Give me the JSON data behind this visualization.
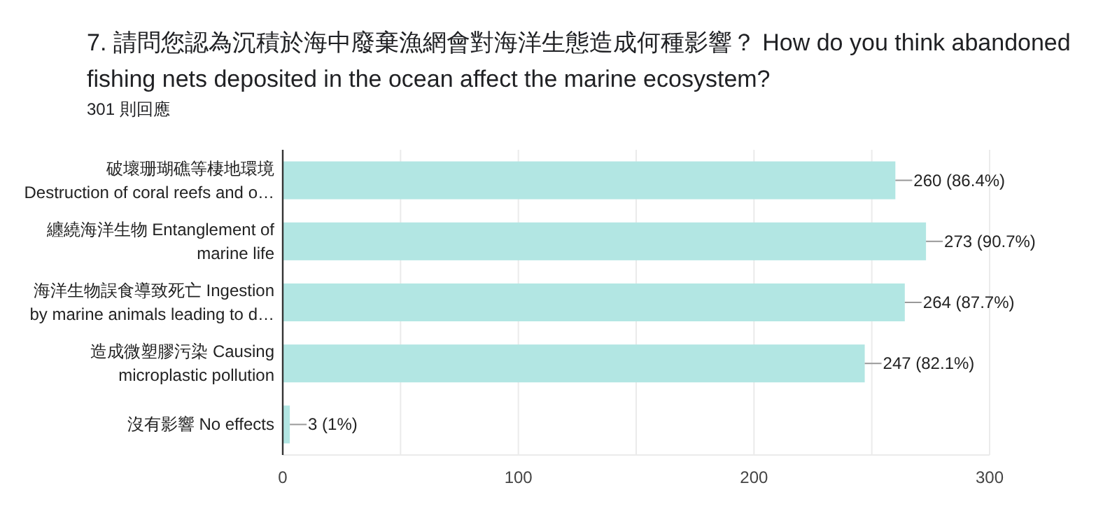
{
  "chart_data": {
    "type": "bar",
    "orientation": "horizontal",
    "title": "7. 請問您認為沉積於海中廢棄漁網會對海洋生態造成何種影響？ How do you think abandoned fishing nets deposited in the ocean affect the marine ecosystem?",
    "subtitle": "301 則回應",
    "categories": [
      "破壞珊瑚礁等棲地環境\nDestruction of coral reefs and o…",
      "纏繞海洋生物 Entanglement of\nmarine life",
      "海洋生物誤食導致死亡 Ingestion\nby marine animals leading to d…",
      "造成微塑膠污染 Causing\nmicroplastic pollution",
      "沒有影響 No effects"
    ],
    "values": [
      260,
      273,
      264,
      247,
      3
    ],
    "value_labels": [
      "260 (86.4%)",
      "273 (90.7%)",
      "264 (87.7%)",
      "247 (82.1%)",
      "3 (1%)"
    ],
    "color": "#b2e6e3",
    "xlim": [
      0,
      300
    ],
    "xticks": [
      0,
      {
        "value": 50,
        "label": null
      },
      100,
      {
        "value": 150,
        "label": null
      },
      200,
      {
        "value": 250,
        "label": null
      },
      300
    ],
    "grid": "x"
  }
}
